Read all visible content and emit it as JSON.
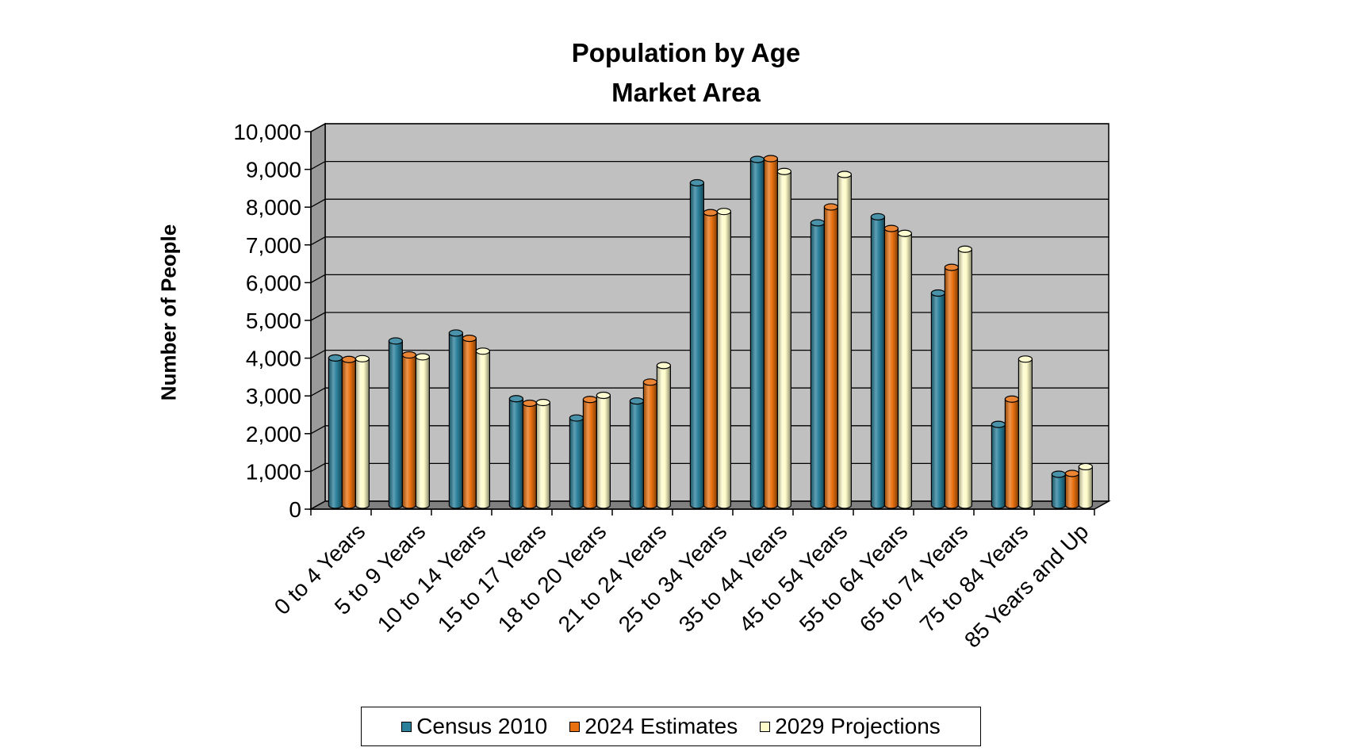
{
  "chart_data": {
    "type": "bar",
    "title": "Population by Age",
    "subtitle": "Market Area",
    "xlabel": "",
    "ylabel": "Number of People",
    "ylim": [
      0,
      10000
    ],
    "yticks": [
      "0",
      "1,000",
      "2,000",
      "3,000",
      "4,000",
      "5,000",
      "6,000",
      "7,000",
      "8,000",
      "9,000",
      "10,000"
    ],
    "grid": true,
    "legend_position": "bottom",
    "style": "3d-cylinder",
    "categories": [
      "0 to 4 Years",
      "5 to 9 Years",
      "10 to 14 Years",
      "15 to 17 Years",
      "18 to 20 Years",
      "21 to 24 Years",
      "25 to 34 Years",
      "35 to 44 Years",
      "45 to 54 Years",
      "55 to 64 Years",
      "65 to 74 Years",
      "75 to 84 Years",
      "85 Years and Up"
    ],
    "series": [
      {
        "name": "Census 2010",
        "color": "#2a7f9a",
        "values": [
          3900,
          4350,
          4560,
          2820,
          2310,
          2760,
          8540,
          9160,
          7480,
          7640,
          5620,
          2140,
          820
        ]
      },
      {
        "name": "2024 Estimates",
        "color": "#e8700f",
        "values": [
          3860,
          3980,
          4420,
          2700,
          2800,
          3260,
          7750,
          9180,
          7900,
          7330,
          6300,
          2810,
          840
        ]
      },
      {
        "name": "2029 Projections",
        "color": "#fdfbc9",
        "values": [
          3880,
          3930,
          4080,
          2720,
          2910,
          3700,
          7780,
          8840,
          8760,
          7200,
          6780,
          3870,
          1020
        ]
      }
    ]
  }
}
